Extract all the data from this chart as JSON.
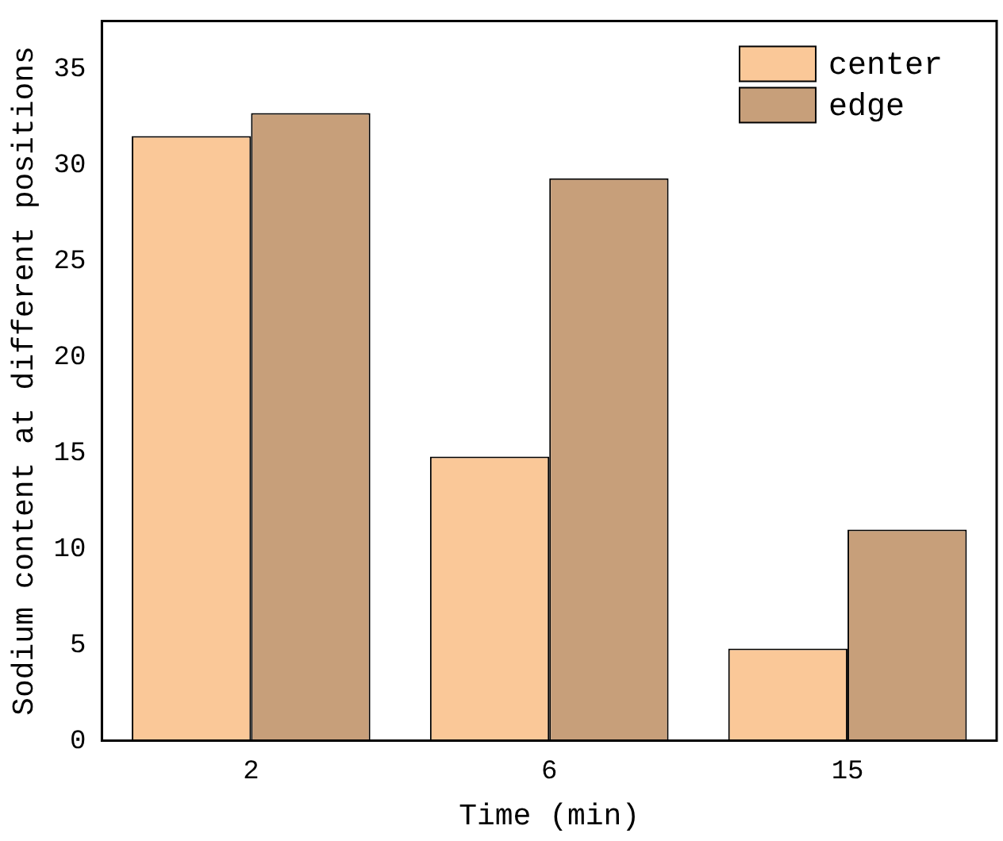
{
  "chart_data": {
    "type": "bar",
    "xlabel": "Time (min)",
    "ylabel": "Sodium content at different positions",
    "categories": [
      "2",
      "6",
      "15"
    ],
    "series": [
      {
        "name": "center",
        "color": "#fac898",
        "values": [
          31.5,
          14.8,
          4.8
        ]
      },
      {
        "name": "edge",
        "color": "#c79f7a",
        "values": [
          32.7,
          29.3,
          11.0
        ]
      }
    ],
    "ylim": [
      0,
      37.5
    ],
    "yticks": [
      0,
      5,
      10,
      15,
      20,
      25,
      30,
      35
    ],
    "grid": false,
    "legend": "top right"
  }
}
